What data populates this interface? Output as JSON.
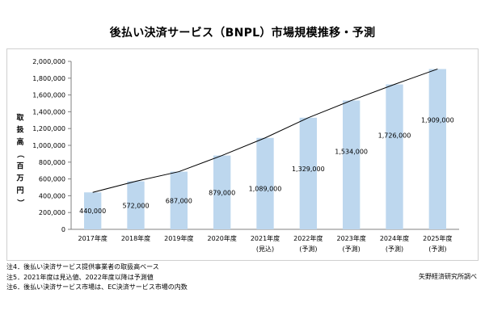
{
  "chart_data": {
    "type": "bar",
    "title": "後払い決済サービス（BNPL）市場規模推移・予測",
    "ylabel": "取扱高（百万円）",
    "categories": [
      "2017年度",
      "2018年度",
      "2019年度",
      "2020年度",
      "2021年度",
      "2022年度",
      "2023年度",
      "2024年度",
      "2025年度"
    ],
    "sublabels": [
      "",
      "",
      "",
      "",
      "(見込)",
      "(予測)",
      "(予測)",
      "(予測)",
      "(予測)"
    ],
    "values": [
      440000,
      572000,
      687000,
      879000,
      1089000,
      1329000,
      1534000,
      1726000,
      1909000
    ],
    "value_labels": [
      "440,000",
      "572,000",
      "687,000",
      "879,000",
      "1,089,000",
      "1,329,000",
      "1,534,000",
      "1,726,000",
      "1,909,000"
    ],
    "yticks": [
      0,
      200000,
      400000,
      600000,
      800000,
      1000000,
      1200000,
      1400000,
      1600000,
      1800000,
      2000000
    ],
    "ytick_labels": [
      "0",
      "200,000",
      "400,000",
      "600,000",
      "800,000",
      "1,000,000",
      "1,200,000",
      "1,400,000",
      "1,600,000",
      "1,800,000",
      "2,000,000"
    ],
    "ylim": [
      0,
      2000000
    ],
    "grid": false,
    "legend": "none",
    "bar_color": "#bdd7ee",
    "line_color": "#000000",
    "trend_line": true
  },
  "notes": [
    "注4．後払い決済サービス提供事業者の取扱高ベース",
    "注5．2021年度は見込値、2022年度以降は予測値",
    "注6．後払い決済サービス市場は、EC決済サービス市場の内数"
  ],
  "source": "矢野経済研究所調べ"
}
